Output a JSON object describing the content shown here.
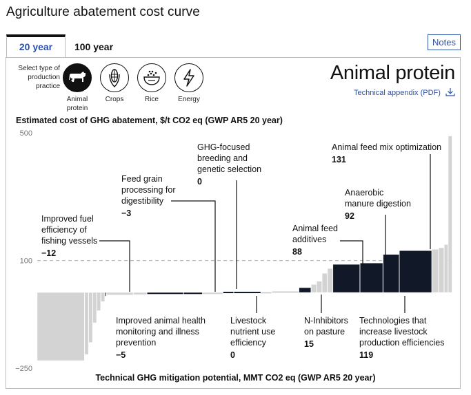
{
  "header": {
    "title": "Agriculture abatement cost curve"
  },
  "tabs": [
    {
      "label": "20 year",
      "active": true
    },
    {
      "label": "100 year",
      "active": false
    }
  ],
  "notes_label": "Notes",
  "selector": {
    "label": "Select type of production practice",
    "practices": [
      {
        "label": "Animal protein",
        "icon": "cow-icon",
        "active": true
      },
      {
        "label": "Crops",
        "icon": "corn-icon",
        "active": false
      },
      {
        "label": "Rice",
        "icon": "rice-bowl-icon",
        "active": false
      },
      {
        "label": "Energy",
        "icon": "lightning-icon",
        "active": false
      }
    ]
  },
  "panel_title": "Animal protein",
  "appendix_link": "Technical appendix (PDF)",
  "colors": {
    "accent": "#2a4fa8",
    "highlight": "#111827",
    "muted": "#d3d3d3",
    "reference": "#bbbbbb"
  },
  "chart_data": {
    "type": "bar",
    "variable_width": true,
    "ylabel": "Estimated cost of GHG abatement, $/t CO2 eq (GWP AR5 20 year)",
    "xlabel": "Technical GHG mitigation potential, MMT CO2 eq (GWP AR5 20 year)",
    "ylim": [
      -250,
      500
    ],
    "yticks": [
      500,
      100,
      -250
    ],
    "reference_line": 100,
    "bars": [
      {
        "width": 35,
        "value": -225,
        "highlighted": false
      },
      {
        "width": 3,
        "value": -205,
        "highlighted": false
      },
      {
        "width": 3,
        "value": -165,
        "highlighted": false
      },
      {
        "width": 3,
        "value": -100,
        "highlighted": false
      },
      {
        "width": 3,
        "value": -60,
        "highlighted": false
      },
      {
        "width": 3,
        "value": -30,
        "highlighted": false
      },
      {
        "width": 1,
        "value": -12,
        "highlighted": true
      },
      {
        "width": 20,
        "value": -8,
        "highlighted": false
      },
      {
        "width": 10,
        "value": -7,
        "highlighted": false
      },
      {
        "width": 27,
        "value": -5,
        "highlighted": true
      },
      {
        "width": 14,
        "value": -3,
        "highlighted": true
      },
      {
        "width": 15,
        "value": -1,
        "highlighted": false
      },
      {
        "width": 8,
        "value": 0,
        "highlighted": true
      },
      {
        "width": 20,
        "value": 0,
        "highlighted": true
      },
      {
        "width": 8,
        "value": 2,
        "highlighted": false
      },
      {
        "width": 20,
        "value": 4,
        "highlighted": false
      },
      {
        "width": 9,
        "value": 15,
        "highlighted": true
      },
      {
        "width": 4,
        "value": 25,
        "highlighted": false
      },
      {
        "width": 4,
        "value": 35,
        "highlighted": false
      },
      {
        "width": 4,
        "value": 60,
        "highlighted": false
      },
      {
        "width": 4,
        "value": 75,
        "highlighted": false
      },
      {
        "width": 20,
        "value": 88,
        "highlighted": true
      },
      {
        "width": 17,
        "value": 92,
        "highlighted": true
      },
      {
        "width": 12,
        "value": 119,
        "highlighted": true
      },
      {
        "width": 24,
        "value": 131,
        "highlighted": true
      },
      {
        "width": 5,
        "value": 135,
        "highlighted": false
      },
      {
        "width": 4,
        "value": 140,
        "highlighted": false
      },
      {
        "width": 3,
        "value": 150,
        "highlighted": false
      },
      {
        "width": 3,
        "value": 490,
        "highlighted": false
      }
    ],
    "annotations": [
      {
        "lines": [
          "Improved fuel",
          "efficiency of",
          "fishing vessels"
        ],
        "value": "−12"
      },
      {
        "lines": [
          "Feed grain",
          "processing for",
          "digestibility"
        ],
        "value": "−3"
      },
      {
        "lines": [
          "GHG-focused",
          "breeding and",
          "genetic selection"
        ],
        "value": "0"
      },
      {
        "lines": [
          "Animal feed mix optimization"
        ],
        "value": "131"
      },
      {
        "lines": [
          "Anaerobic",
          "manure digestion"
        ],
        "value": "92"
      },
      {
        "lines": [
          "Animal feed",
          "additives"
        ],
        "value": "88"
      },
      {
        "lines": [
          "Improved animal health",
          "monitoring and illness",
          "prevention"
        ],
        "value": "−5"
      },
      {
        "lines": [
          "Livestock",
          "nutrient use",
          "efficiency"
        ],
        "value": "0"
      },
      {
        "lines": [
          "N-Inhibitors",
          "on pasture"
        ],
        "value": "15"
      },
      {
        "lines": [
          "Technologies that",
          "increase livestock",
          "production efficiencies"
        ],
        "value": "119"
      }
    ]
  }
}
